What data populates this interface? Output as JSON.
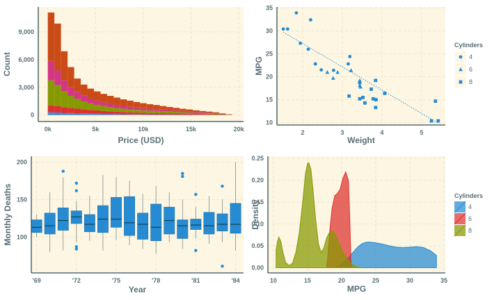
{
  "colors": {
    "panel_bg": "#fdf6e3",
    "grid": "#efe6cd",
    "axis": "#2f4f58",
    "tick_text": "#586e75",
    "label_text": "#586e75",
    "point": "#268bd2",
    "box_fill": "#268bd2",
    "hist_c1": "#cb4b16",
    "hist_c2": "#d33682",
    "hist_c3": "#859900",
    "hist_c4": "#dc322f",
    "hist_c5": "#6c71c4",
    "hist_c6": "#268bd2",
    "dens_4": "#268bd2",
    "dens_6": "#dc322f",
    "dens_8": "#859900"
  },
  "chart_data": [
    {
      "id": "price-histogram",
      "type": "bar",
      "stacked": true,
      "title": "",
      "xlabel": "Price (USD)",
      "ylabel": "Count",
      "xlim": [
        -1000,
        20500
      ],
      "ylim": [
        -700,
        11700
      ],
      "xticks": [
        0,
        5000,
        10000,
        15000,
        20000
      ],
      "xtick_labels": [
        "0k",
        "5k",
        "10k",
        "15k",
        "20k"
      ],
      "yticks": [
        0,
        3000,
        6000,
        9000
      ],
      "ytick_labels": [
        "0",
        "3,000",
        "6,000",
        "9,000"
      ],
      "bin_width": 690,
      "bin_starts": [
        0,
        690,
        1380,
        2070,
        2760,
        3450,
        4140,
        4830,
        5520,
        6210,
        6900,
        7590,
        8280,
        8970,
        9660,
        10350,
        11040,
        11730,
        12420,
        13110,
        13800,
        14490,
        15180,
        15870,
        16560,
        17250,
        17940,
        18630
      ],
      "series": [
        {
          "name": "layer-1",
          "color_key": "hist_c6",
          "values": [
            140,
            130,
            110,
            100,
            90,
            80,
            70,
            60,
            55,
            50,
            45,
            40,
            35,
            30,
            30,
            25,
            25,
            20,
            20,
            15,
            15,
            15,
            10,
            10,
            10,
            8,
            5,
            5
          ]
        },
        {
          "name": "layer-2",
          "color_key": "hist_c5",
          "values": [
            160,
            150,
            130,
            120,
            110,
            100,
            90,
            80,
            70,
            60,
            55,
            50,
            45,
            40,
            35,
            30,
            30,
            25,
            25,
            20,
            20,
            15,
            15,
            10,
            10,
            8,
            5,
            5
          ]
        },
        {
          "name": "layer-3",
          "color_key": "hist_c4",
          "values": [
            750,
            700,
            620,
            560,
            500,
            450,
            400,
            360,
            320,
            290,
            260,
            240,
            220,
            200,
            180,
            170,
            160,
            150,
            140,
            130,
            120,
            110,
            100,
            90,
            80,
            70,
            40,
            20
          ]
        },
        {
          "name": "layer-4",
          "color_key": "hist_c3",
          "values": [
            2700,
            2250,
            1700,
            1300,
            1050,
            850,
            700,
            600,
            520,
            450,
            400,
            350,
            320,
            290,
            270,
            250,
            230,
            210,
            190,
            170,
            150,
            140,
            120,
            100,
            90,
            70,
            40,
            15
          ]
        },
        {
          "name": "layer-5",
          "color_key": "hist_c2",
          "values": [
            2100,
            1600,
            1200,
            950,
            760,
            620,
            520,
            460,
            410,
            370,
            340,
            310,
            280,
            260,
            240,
            220,
            200,
            185,
            170,
            150,
            135,
            120,
            105,
            90,
            75,
            55,
            30,
            15
          ]
        },
        {
          "name": "layer-6",
          "color_key": "hist_c1",
          "values": [
            5250,
            5070,
            3140,
            2160,
            1440,
            1200,
            1080,
            1000,
            920,
            860,
            790,
            710,
            660,
            590,
            535,
            485,
            445,
            390,
            325,
            295,
            240,
            205,
            160,
            140,
            110,
            90,
            60,
            30
          ]
        }
      ]
    },
    {
      "id": "mpg-weight-scatter",
      "type": "scatter",
      "title": "",
      "xlabel": "Weight",
      "ylabel": "MPG",
      "xlim": [
        1.35,
        5.6
      ],
      "ylim": [
        9.5,
        35.2
      ],
      "xticks": [
        2,
        3,
        4,
        5
      ],
      "xtick_labels": [
        "2",
        "3",
        "4",
        "5"
      ],
      "yticks": [
        10,
        15,
        20,
        25,
        30,
        35
      ],
      "ytick_labels": [
        "10",
        "15",
        "20",
        "25",
        "30",
        "35"
      ],
      "trendline": {
        "x": [
          1.51,
          5.42
        ],
        "y": [
          29.7,
          9.9
        ]
      },
      "legend": {
        "title": "Cylinders",
        "placement": "right",
        "labels": [
          "4",
          "6",
          "8"
        ]
      },
      "series": [
        {
          "name": "4",
          "marker": "circle",
          "x": [
            1.51,
            1.62,
            1.84,
            1.94,
            2.14,
            2.2,
            2.32,
            2.47,
            2.78,
            3.19,
            3.15,
            2.32
          ],
          "y": [
            30.4,
            30.4,
            33.9,
            27.3,
            26.0,
            32.4,
            22.8,
            21.5,
            21.4,
            24.4,
            22.8,
            22.8
          ]
        },
        {
          "name": "6",
          "marker": "triangle",
          "x": [
            2.62,
            2.88,
            2.77,
            3.22,
            3.44,
            3.44,
            3.46
          ],
          "y": [
            21.0,
            21.0,
            19.7,
            21.4,
            18.1,
            19.2,
            17.8
          ]
        },
        {
          "name": "8",
          "marker": "square",
          "x": [
            3.44,
            3.57,
            3.84,
            4.07,
            3.73,
            3.78,
            5.25,
            5.42,
            5.35,
            3.52,
            3.44,
            3.84,
            3.85,
            3.17
          ],
          "y": [
            18.7,
            14.3,
            13.3,
            16.4,
            17.3,
            15.2,
            10.4,
            10.4,
            14.7,
            15.5,
            15.2,
            19.2,
            15.0,
            15.8
          ]
        }
      ]
    },
    {
      "id": "deaths-boxplot",
      "type": "box",
      "title": "",
      "xlabel": "Year",
      "ylabel": "Monthly Deaths",
      "xlim": [
        1968.6,
        1984.6
      ],
      "ylim": [
        52,
        208
      ],
      "xticks": [
        1969,
        1972,
        1975,
        1978,
        1981,
        1984
      ],
      "xtick_labels": [
        "'69",
        "'72",
        "'75",
        "'78",
        "'81",
        "'84"
      ],
      "yticks": [
        100,
        150,
        200
      ],
      "ytick_labels": [
        "100",
        "150",
        "200"
      ],
      "boxes": [
        {
          "year": 1969,
          "min": 100,
          "q1": 106,
          "median": 113,
          "q3": 123,
          "max": 130,
          "outliers": []
        },
        {
          "year": 1970,
          "min": 80,
          "q1": 104,
          "median": 115,
          "q3": 132,
          "max": 160,
          "outliers": []
        },
        {
          "year": 1971,
          "min": 82,
          "q1": 109,
          "median": 122,
          "q3": 139,
          "max": 180,
          "outliers": [
            188
          ]
        },
        {
          "year": 1972,
          "min": 93,
          "q1": 118,
          "median": 127,
          "q3": 135,
          "max": 148,
          "outliers": [
            172,
            162,
            87,
            84
          ]
        },
        {
          "year": 1973,
          "min": 95,
          "q1": 107,
          "median": 117,
          "q3": 130,
          "max": 155,
          "outliers": []
        },
        {
          "year": 1974,
          "min": 82,
          "q1": 106,
          "median": 124,
          "q3": 142,
          "max": 183,
          "outliers": []
        },
        {
          "year": 1975,
          "min": 96,
          "q1": 113,
          "median": 124,
          "q3": 153,
          "max": 180,
          "outliers": []
        },
        {
          "year": 1976,
          "min": 89,
          "q1": 102,
          "median": 119,
          "q3": 154,
          "max": 175,
          "outliers": []
        },
        {
          "year": 1977,
          "min": 84,
          "q1": 97,
          "median": 117,
          "q3": 132,
          "max": 158,
          "outliers": []
        },
        {
          "year": 1978,
          "min": 78,
          "q1": 95,
          "median": 113,
          "q3": 144,
          "max": 168,
          "outliers": []
        },
        {
          "year": 1979,
          "min": 93,
          "q1": 104,
          "median": 122,
          "q3": 140,
          "max": 160,
          "outliers": []
        },
        {
          "year": 1980,
          "min": 84,
          "q1": 98,
          "median": 115,
          "q3": 123,
          "max": 150,
          "outliers": [
            185,
            181
          ]
        },
        {
          "year": 1981,
          "min": 98,
          "q1": 110,
          "median": 116,
          "q3": 124,
          "max": 140,
          "outliers": [
            157,
            82
          ]
        },
        {
          "year": 1982,
          "min": 91,
          "q1": 104,
          "median": 115,
          "q3": 133,
          "max": 155,
          "outliers": []
        },
        {
          "year": 1983,
          "min": 93,
          "q1": 108,
          "median": 117,
          "q3": 131,
          "max": 150,
          "outliers": [
            168,
            61
          ]
        },
        {
          "year": 1984,
          "min": 82,
          "q1": 105,
          "median": 117,
          "q3": 145,
          "max": 200,
          "outliers": []
        }
      ]
    },
    {
      "id": "mpg-density",
      "type": "area",
      "title": "",
      "xlabel": "MPG",
      "ylabel": "Density",
      "xlim": [
        9.2,
        35.2
      ],
      "ylim": [
        -0.012,
        0.255
      ],
      "xticks": [
        10,
        15,
        20,
        25,
        30,
        35
      ],
      "xtick_labels": [
        "10",
        "15",
        "20",
        "25",
        "30",
        "35"
      ],
      "yticks": [
        0.0,
        0.05,
        0.1,
        0.15,
        0.2,
        0.25
      ],
      "ytick_labels": [
        "0.00",
        "0.05",
        "0.10",
        "0.15",
        "0.20",
        "0.25"
      ],
      "legend": {
        "title": "Cylinders",
        "placement": "right",
        "labels": [
          "4",
          "6",
          "8"
        ]
      },
      "series": [
        {
          "name": "4",
          "color_key": "dens_4",
          "x": [
            19.0,
            19.5,
            20.0,
            20.5,
            21.0,
            21.5,
            22.0,
            22.5,
            23.0,
            23.5,
            24.0,
            25.0,
            26.0,
            27.0,
            28.0,
            29.0,
            30.0,
            31.0,
            32.0,
            33.0,
            33.5,
            33.9
          ],
          "y": [
            0.0,
            0.003,
            0.008,
            0.015,
            0.023,
            0.032,
            0.041,
            0.049,
            0.055,
            0.058,
            0.059,
            0.057,
            0.054,
            0.05,
            0.047,
            0.046,
            0.047,
            0.048,
            0.046,
            0.039,
            0.033,
            0.028
          ]
        },
        {
          "name": "6",
          "color_key": "dens_6",
          "x": [
            17.8,
            18.0,
            18.3,
            18.6,
            19.0,
            19.4,
            19.8,
            20.2,
            20.6,
            21.0,
            21.2,
            21.4
          ],
          "y": [
            0.0,
            0.03,
            0.09,
            0.135,
            0.165,
            0.17,
            0.18,
            0.205,
            0.219,
            0.2,
            0.11,
            0.0
          ]
        },
        {
          "name": "8",
          "color_key": "dens_8",
          "x": [
            10.4,
            10.6,
            10.8,
            11.1,
            11.4,
            11.8,
            12.3,
            12.8,
            13.3,
            13.8,
            14.3,
            14.7,
            15.0,
            15.2,
            15.5,
            15.8,
            16.2,
            16.6,
            17.0,
            17.4,
            17.8,
            18.2,
            18.6,
            19.0,
            19.4,
            19.8,
            20.2,
            20.6,
            21.0,
            21.4,
            21.8,
            22.2,
            22.6,
            23.0
          ],
          "y": [
            0.04,
            0.06,
            0.07,
            0.06,
            0.035,
            0.012,
            0.005,
            0.01,
            0.035,
            0.08,
            0.15,
            0.215,
            0.238,
            0.24,
            0.225,
            0.18,
            0.11,
            0.055,
            0.035,
            0.045,
            0.068,
            0.08,
            0.085,
            0.078,
            0.065,
            0.05,
            0.036,
            0.025,
            0.016,
            0.009,
            0.005,
            0.002,
            0.001,
            0.0
          ]
        }
      ]
    }
  ]
}
